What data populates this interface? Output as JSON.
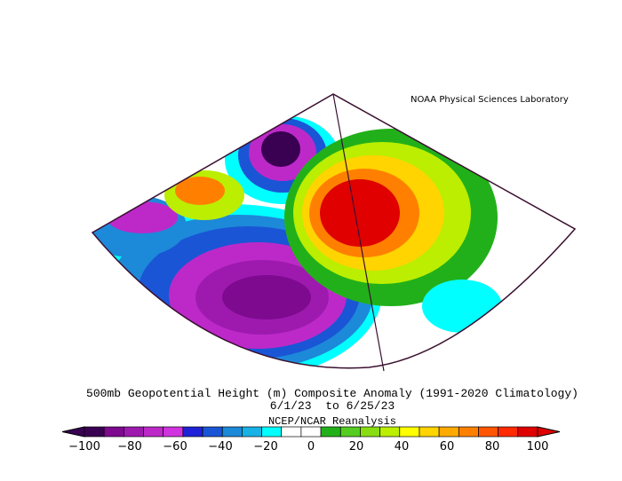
{
  "header": {
    "credit": "NOAA Physical Sciences Laboratory"
  },
  "caption": {
    "line1": "500mb Geopotential Height (m) Composite Anomaly (1991-2020 Climatology)",
    "line2": "6/1/23  to 6/25/23",
    "line3": "NCEP/NCAR Reanalysis"
  },
  "colorbar": {
    "colors": [
      "#3a0052",
      "#7d0a8f",
      "#9e1aaf",
      "#bd29c8",
      "#d133e0",
      "#1f22d6",
      "#1a55d6",
      "#1d89d9",
      "#18b2e6",
      "#00ffff",
      "#ffffff",
      "#ffffff",
      "#22b01a",
      "#55cc22",
      "#88dd11",
      "#bbee00",
      "#ffff00",
      "#ffd400",
      "#ffaa00",
      "#ff8000",
      "#ff5500",
      "#ff2a00",
      "#e00000"
    ],
    "tick_labels": [
      {
        "value": -100,
        "label": "−100"
      },
      {
        "value": -80,
        "label": "−80"
      },
      {
        "value": -60,
        "label": "−60"
      },
      {
        "value": -40,
        "label": "−40"
      },
      {
        "value": -20,
        "label": "−20"
      },
      {
        "value": 0,
        "label": "0"
      },
      {
        "value": 20,
        "label": "20"
      },
      {
        "value": 40,
        "label": "40"
      },
      {
        "value": 60,
        "label": "60"
      },
      {
        "value": 80,
        "label": "80"
      },
      {
        "value": 100,
        "label": "100"
      }
    ]
  },
  "map": {
    "features": [
      {
        "name": "greenland-low",
        "color": "#3a0052"
      },
      {
        "name": "atlantic-low",
        "color": "#7d0a8f"
      },
      {
        "name": "europe-high",
        "color": "#e00000"
      }
    ]
  }
}
